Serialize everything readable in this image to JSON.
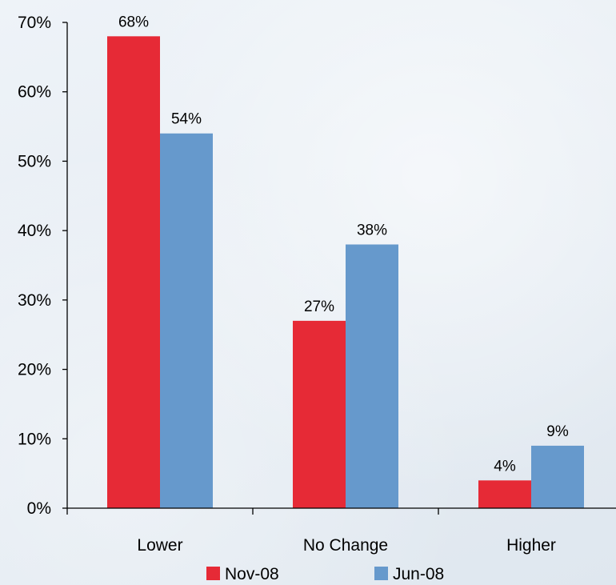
{
  "chart_data": {
    "type": "bar",
    "categories": [
      "Lower",
      "No Change",
      "Higher"
    ],
    "series": [
      {
        "name": "Nov-08",
        "values": [
          68,
          27,
          4
        ],
        "color": "#e62a36"
      },
      {
        "name": "Jun-08",
        "values": [
          54,
          38,
          9
        ],
        "color": "#6699cc"
      }
    ],
    "value_labels": [
      [
        "68%",
        "27%",
        "4%"
      ],
      [
        "54%",
        "38%",
        "9%"
      ]
    ],
    "ylim": [
      0,
      70
    ],
    "yticks": [
      0,
      10,
      20,
      30,
      40,
      50,
      60,
      70
    ],
    "ytick_labels": [
      "0%",
      "10%",
      "20%",
      "30%",
      "40%",
      "50%",
      "60%",
      "70%"
    ],
    "title": "",
    "xlabel": "",
    "ylabel": "",
    "grid": false,
    "legend_position": "bottom"
  }
}
